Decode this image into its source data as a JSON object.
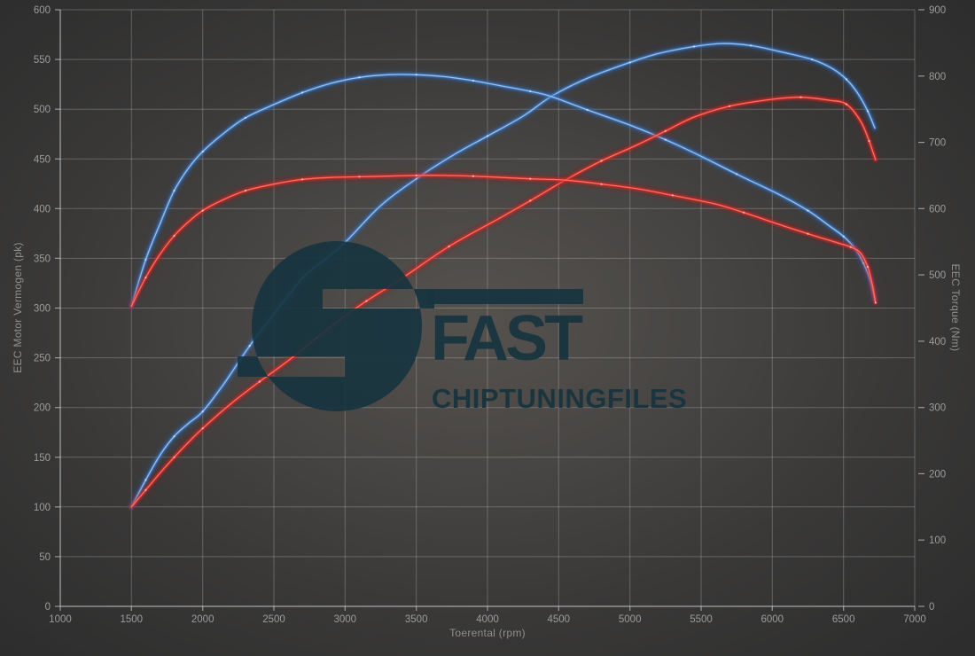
{
  "chart_data": {
    "type": "line",
    "title": "",
    "xlabel": "Toerental (rpm)",
    "ylabel_left": "EEC Motor Vermogen (pk)",
    "ylabel_right": "EEC Torque (Nm)",
    "x_range": [
      1000,
      7000
    ],
    "y_left_range": [
      0,
      600
    ],
    "y_right_range": [
      0,
      900
    ],
    "x_ticks": [
      1000,
      1500,
      2000,
      2500,
      3000,
      3500,
      4000,
      4500,
      5000,
      5500,
      6000,
      6500,
      7000
    ],
    "y_left_ticks": [
      0,
      50,
      100,
      150,
      200,
      250,
      300,
      350,
      400,
      450,
      500,
      550,
      600
    ],
    "y_right_ticks": [
      0,
      100,
      200,
      300,
      400,
      500,
      600,
      700,
      800,
      900
    ],
    "grid": true,
    "legend": "none",
    "series": [
      {
        "name": "blue-power",
        "axis": "left",
        "unit": "pk",
        "color_glow": "#2a62b8",
        "color_mid": "#3d7fd4",
        "color_core": "#9ec9f2",
        "points": [
          [
            1500,
            100
          ],
          [
            1600,
            127
          ],
          [
            1700,
            152
          ],
          [
            1800,
            171
          ],
          [
            1900,
            184
          ],
          [
            2000,
            196
          ],
          [
            2150,
            224
          ],
          [
            2330,
            262
          ],
          [
            2500,
            294
          ],
          [
            2700,
            330
          ],
          [
            2850,
            348
          ],
          [
            3000,
            366
          ],
          [
            3250,
            403
          ],
          [
            3500,
            430
          ],
          [
            3750,
            453
          ],
          [
            4000,
            473
          ],
          [
            4250,
            493
          ],
          [
            4450,
            513
          ],
          [
            4700,
            531
          ],
          [
            5000,
            547
          ],
          [
            5200,
            556
          ],
          [
            5450,
            563
          ],
          [
            5650,
            566
          ],
          [
            5850,
            564
          ],
          [
            6050,
            558
          ],
          [
            6280,
            550
          ],
          [
            6420,
            541
          ],
          [
            6520,
            530
          ],
          [
            6600,
            516
          ],
          [
            6670,
            498
          ],
          [
            6720,
            481
          ]
        ]
      },
      {
        "name": "blue-torque",
        "axis": "right",
        "unit": "Nm",
        "color_glow": "#2a62b8",
        "color_mid": "#3d7fd4",
        "color_core": "#9ec9f2",
        "points": [
          [
            1500,
            453
          ],
          [
            1600,
            523
          ],
          [
            1700,
            577
          ],
          [
            1800,
            627
          ],
          [
            1900,
            661
          ],
          [
            2000,
            686
          ],
          [
            2150,
            714
          ],
          [
            2300,
            737
          ],
          [
            2500,
            757
          ],
          [
            2700,
            775
          ],
          [
            2900,
            789
          ],
          [
            3100,
            798
          ],
          [
            3300,
            802
          ],
          [
            3500,
            802
          ],
          [
            3700,
            799
          ],
          [
            3900,
            793
          ],
          [
            4100,
            785
          ],
          [
            4300,
            777
          ],
          [
            4450,
            769
          ],
          [
            4700,
            749
          ],
          [
            5000,
            726
          ],
          [
            5250,
            704
          ],
          [
            5500,
            679
          ],
          [
            5750,
            652
          ],
          [
            6050,
            621
          ],
          [
            6250,
            597
          ],
          [
            6400,
            574
          ],
          [
            6500,
            558
          ],
          [
            6580,
            540
          ],
          [
            6640,
            518
          ],
          [
            6690,
            490
          ],
          [
            6720,
            462
          ]
        ]
      },
      {
        "name": "red-power",
        "axis": "left",
        "unit": "pk",
        "color_glow": "#b51515",
        "color_mid": "#e32222",
        "color_core": "#ff7a66",
        "points": [
          [
            1500,
            100
          ],
          [
            1600,
            117
          ],
          [
            1700,
            134
          ],
          [
            1800,
            150
          ],
          [
            1900,
            165
          ],
          [
            2000,
            179
          ],
          [
            2200,
            204
          ],
          [
            2400,
            226
          ],
          [
            2600,
            247
          ],
          [
            2800,
            270
          ],
          [
            3000,
            292
          ],
          [
            3150,
            307
          ],
          [
            3400,
            330
          ],
          [
            3730,
            362
          ],
          [
            4080,
            390
          ],
          [
            4300,
            408
          ],
          [
            4550,
            429
          ],
          [
            4800,
            448
          ],
          [
            5050,
            464
          ],
          [
            5250,
            478
          ],
          [
            5450,
            492
          ],
          [
            5700,
            503
          ],
          [
            6000,
            510
          ],
          [
            6200,
            512
          ],
          [
            6400,
            509
          ],
          [
            6520,
            505
          ],
          [
            6620,
            488
          ],
          [
            6680,
            468
          ],
          [
            6725,
            449
          ]
        ]
      },
      {
        "name": "red-torque",
        "axis": "right",
        "unit": "Nm",
        "color_glow": "#b51515",
        "color_mid": "#e32222",
        "color_core": "#ff7a66",
        "points": [
          [
            1500,
            453
          ],
          [
            1600,
            496
          ],
          [
            1700,
            531
          ],
          [
            1800,
            559
          ],
          [
            1900,
            580
          ],
          [
            2000,
            597
          ],
          [
            2150,
            614
          ],
          [
            2300,
            627
          ],
          [
            2500,
            637
          ],
          [
            2700,
            644
          ],
          [
            2900,
            647
          ],
          [
            3100,
            648
          ],
          [
            3300,
            649
          ],
          [
            3500,
            650
          ],
          [
            3700,
            650
          ],
          [
            3900,
            649
          ],
          [
            4100,
            647
          ],
          [
            4300,
            645
          ],
          [
            4550,
            643
          ],
          [
            4800,
            637
          ],
          [
            5050,
            630
          ],
          [
            5300,
            620
          ],
          [
            5600,
            607
          ],
          [
            5800,
            594
          ],
          [
            6050,
            576
          ],
          [
            6250,
            562
          ],
          [
            6450,
            549
          ],
          [
            6550,
            542
          ],
          [
            6620,
            533
          ],
          [
            6670,
            512
          ],
          [
            6700,
            488
          ],
          [
            6725,
            458
          ]
        ]
      }
    ]
  },
  "watermark": {
    "line1": "FAST",
    "line2": "CHIPTUNINGFILES",
    "color": "#17343f"
  },
  "style_colors": {
    "background_center": "#55524e",
    "background_edge": "#2d2d2d",
    "grid": "#bdbdbd",
    "tick_label": "#9c9c9c",
    "axis_title": "#8f8f8f"
  }
}
